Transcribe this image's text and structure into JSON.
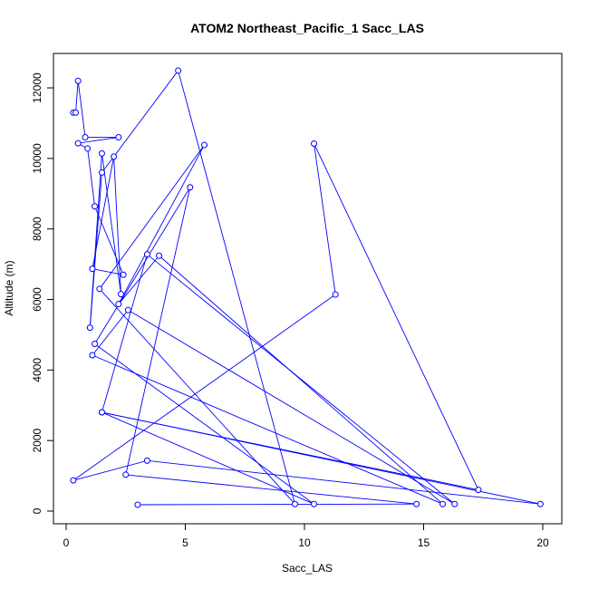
{
  "chart_data": {
    "type": "line",
    "title": "ATOM2 Northeast_Pacific_1 Sacc_LAS",
    "xlabel": "Sacc_LAS",
    "ylabel": "Altitude (m)",
    "xlim": [
      0,
      20
    ],
    "ylim": [
      0,
      12500
    ],
    "x_ticks": [
      "0",
      "5",
      "10",
      "15",
      "20"
    ],
    "y_ticks": [
      "0",
      "2000",
      "4000",
      "6000",
      "8000",
      "10000",
      "12000"
    ],
    "x_tick_values": [
      0,
      5,
      10,
      15,
      20
    ],
    "y_tick_values": [
      0,
      2000,
      4000,
      6000,
      8000,
      10000,
      12000
    ],
    "grid": false,
    "series": [
      {
        "color": "#0000ff",
        "marker": "open-circle",
        "x": [
          0.3,
          0.4,
          0.5,
          0.8,
          2.2,
          0.5,
          0.9,
          1.2,
          2.4,
          1.1,
          2.0,
          2.3,
          1.5,
          1.0,
          1.5,
          4.7,
          9.6,
          1.4,
          5.8,
          2.2,
          3.9,
          15.8,
          1.1,
          2.6,
          16.3,
          3.4,
          1.5,
          17.3,
          10.4,
          11.3,
          0.3,
          3.4,
          19.9,
          1.5,
          10.4,
          1.2,
          5.2,
          2.5,
          14.7,
          3.0
        ],
        "y": [
          11300,
          11300,
          12200,
          10600,
          10600,
          10430,
          10280,
          8640,
          6700,
          6870,
          10050,
          6150,
          10140,
          5200,
          9600,
          12490,
          200,
          6300,
          10380,
          5870,
          7240,
          200,
          4420,
          5700,
          200,
          7280,
          2800,
          600,
          10420,
          6140,
          870,
          1430,
          200,
          2800,
          200,
          4740,
          9180,
          1030,
          200,
          180
        ]
      }
    ]
  }
}
